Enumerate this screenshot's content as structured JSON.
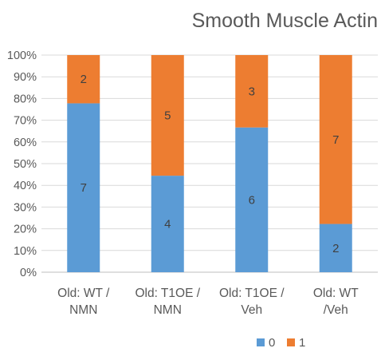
{
  "chart_data": {
    "type": "bar",
    "stacked": "percent",
    "title": "Smooth Muscle Actin",
    "xlabel": "",
    "ylabel": "",
    "ylim": [
      0,
      100
    ],
    "y_ticks": [
      "0%",
      "10%",
      "20%",
      "30%",
      "40%",
      "50%",
      "60%",
      "70%",
      "80%",
      "90%",
      "100%"
    ],
    "categories": [
      [
        "Old: WT /",
        "NMN"
      ],
      [
        "Old: T1OE /",
        "NMN"
      ],
      [
        "Old: T1OE /",
        "Veh"
      ],
      [
        "Old: WT",
        "/Veh"
      ]
    ],
    "series": [
      {
        "name": "0",
        "color": "#5B9BD5",
        "values": [
          7,
          4,
          6,
          2
        ]
      },
      {
        "name": "1",
        "color": "#ED7D31",
        "values": [
          2,
          5,
          3,
          7
        ]
      }
    ],
    "grid": true,
    "legend": "bottom-right"
  }
}
